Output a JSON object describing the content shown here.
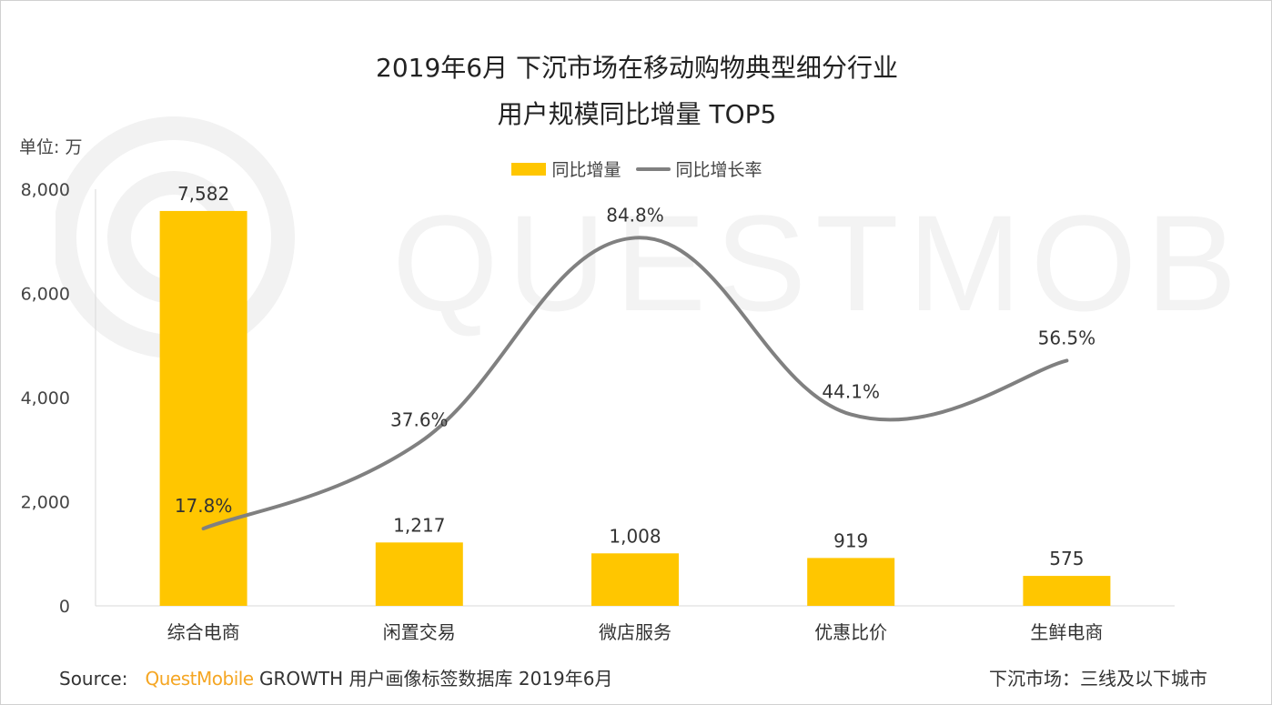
{
  "title_line1": "2019年6月 下沉市场在移动购物典型细分行业",
  "title_line2": "用户规模同比增量 TOP5",
  "unit_label": "单位: 万",
  "legend": {
    "bar": "同比增量",
    "line": "同比增长率"
  },
  "footer": {
    "source_prefix": "Source:",
    "brand_name": "QuestMobile",
    "source_text": "GROWTH 用户画像标签数据库  2019年6月",
    "note": "下沉市场：三线及以下城市"
  },
  "watermark_text": "QUESTMOBILE",
  "colors": {
    "bar": "#FFC600",
    "line": "#808080",
    "brand": "#F5A623"
  },
  "chart_data": {
    "type": "bar",
    "categories": [
      "综合电商",
      "闲置交易",
      "微店服务",
      "优惠比价",
      "生鲜电商"
    ],
    "series": [
      {
        "name": "同比增量",
        "type": "bar",
        "values": [
          7582,
          1217,
          1008,
          919,
          575
        ],
        "labels": [
          "7,582",
          "1,217",
          "1,008",
          "919",
          "575"
        ]
      },
      {
        "name": "同比增长率",
        "type": "line",
        "values": [
          17.8,
          37.6,
          84.8,
          44.1,
          56.5
        ],
        "labels": [
          "17.8%",
          "37.6%",
          "84.8%",
          "44.1%",
          "56.5%"
        ]
      }
    ],
    "ylim": [
      0,
      8000
    ],
    "yticks": [
      0,
      2000,
      4000,
      6000,
      8000
    ],
    "ytick_labels": [
      "0",
      "2,000",
      "4,000",
      "6,000",
      "8,000"
    ],
    "ylim_rate": [
      0,
      96
    ],
    "grid": false,
    "legend_position": "top-center"
  }
}
